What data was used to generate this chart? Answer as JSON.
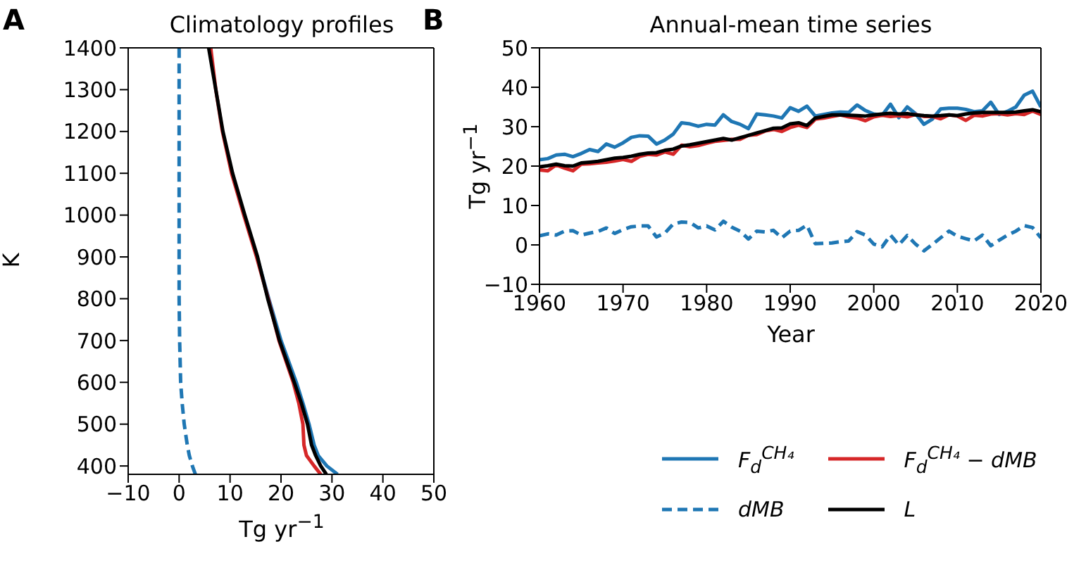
{
  "chart_data": [
    {
      "type": "line",
      "title": "Climatology profiles",
      "xlabel": "Tg yr$^{−1}$",
      "ylabel": "K",
      "annotations": [
        "A"
      ],
      "xlim": [
        -10,
        50
      ],
      "xticks": [
        -10,
        0,
        10,
        20,
        30,
        40,
        50
      ],
      "ylim": [
        380,
        1400
      ],
      "yticks": [
        400,
        500,
        600,
        700,
        800,
        900,
        1000,
        1100,
        1200,
        1300,
        1400
      ],
      "legend": false,
      "series": [
        {
          "color": "#1f77b4",
          "line_style": "solid",
          "x": [
            31.1,
            29,
            27.3,
            26.5,
            25.5,
            24.3,
            23,
            20,
            17.6,
            15.3,
            12.8
          ],
          "values": [
            380,
            400,
            425,
            450,
            500,
            550,
            600,
            700,
            800,
            900,
            1000
          ]
        },
        {
          "color": "#1f77b4",
          "line_style": "dashed",
          "x": [
            3.2,
            2.6,
            2.0,
            1.6,
            1.0,
            0.6,
            0.3,
            0.1,
            0,
            0,
            0,
            0,
            0,
            0,
            0
          ],
          "values": [
            380,
            400,
            425,
            450,
            500,
            550,
            600,
            700,
            800,
            900,
            1000,
            1100,
            1200,
            1300,
            1400
          ]
        },
        {
          "color": "#d62728",
          "line_style": "solid",
          "x": [
            27.8,
            26.5,
            25,
            24.5,
            24.3,
            23.5,
            22.4,
            19.6,
            17.5,
            15.2,
            12.7,
            10.3,
            8.5,
            7.2,
            6.2
          ],
          "values": [
            380,
            400,
            425,
            450,
            500,
            550,
            600,
            700,
            800,
            900,
            1000,
            1100,
            1200,
            1300,
            1400
          ]
        },
        {
          "color": "#000000",
          "line_style": "solid",
          "x": [
            28.9,
            27.8,
            26.8,
            26,
            25.2,
            24,
            22.6,
            19.7,
            17.4,
            15.4,
            12.9,
            10.5,
            8.6,
            7.2,
            5.8
          ],
          "values": [
            380,
            400,
            425,
            450,
            500,
            550,
            600,
            700,
            800,
            900,
            1000,
            1100,
            1200,
            1300,
            1400
          ]
        }
      ]
    },
    {
      "type": "line",
      "title": "Annual-mean time series",
      "xlabel": "Year",
      "ylabel": "Tg yr$^{−1}$",
      "annotations": [
        "B"
      ],
      "xlim": [
        1960,
        2020
      ],
      "xticks": [
        1960,
        1970,
        1980,
        1990,
        2000,
        2010,
        2020
      ],
      "ylim": [
        -10,
        50
      ],
      "yticks": [
        -10,
        0,
        10,
        20,
        30,
        40,
        50
      ],
      "legend": "bottom",
      "x": [
        1960,
        1961,
        1962,
        1963,
        1964,
        1965,
        1966,
        1967,
        1968,
        1969,
        1970,
        1971,
        1972,
        1973,
        1974,
        1975,
        1976,
        1977,
        1978,
        1979,
        1980,
        1981,
        1982,
        1983,
        1984,
        1985,
        1986,
        1987,
        1988,
        1989,
        1990,
        1991,
        1992,
        1993,
        1994,
        1995,
        1996,
        1997,
        1998,
        1999,
        2000,
        2001,
        2002,
        2003,
        2004,
        2005,
        2006,
        2007,
        2008,
        2009,
        2010,
        2011,
        2012,
        2013,
        2014,
        2015,
        2016,
        2017,
        2018,
        2019,
        2020
      ],
      "series": [
        {
          "name": "F$_{d}$$^{CH₄}$",
          "color": "#1f77b4",
          "line_style": "solid",
          "values": [
            21.6,
            21.9,
            22.8,
            23.0,
            22.4,
            23.2,
            24.2,
            23.7,
            25.6,
            24.8,
            25.9,
            27.3,
            27.7,
            27.6,
            25.6,
            26.6,
            28.1,
            31.0,
            30.7,
            30.1,
            30.6,
            30.4,
            33.0,
            31.3,
            30.6,
            29.5,
            33.2,
            33.0,
            32.7,
            32.2,
            34.8,
            33.9,
            35.2,
            32.7,
            33.1,
            33.5,
            33.7,
            33.6,
            35.5,
            34.1,
            33.2,
            32.9,
            35.7,
            32.3,
            35.0,
            33.3,
            30.6,
            31.9,
            34.5,
            34.7,
            34.7,
            34.4,
            33.8,
            34.0,
            36.2,
            33.1,
            33.9,
            35.0,
            38.0,
            39.0,
            35.0
          ]
        },
        {
          "name": "dMB",
          "color": "#1f77b4",
          "line_style": "dashed",
          "values": [
            2.3,
            2.8,
            2.5,
            3.5,
            3.6,
            2.5,
            3.0,
            3.4,
            4.3,
            2.9,
            3.9,
            4.6,
            4.8,
            4.8,
            2.0,
            3.0,
            5.3,
            5.8,
            5.7,
            4.3,
            4.8,
            3.8,
            6.0,
            4.5,
            3.5,
            1.5,
            3.5,
            3.3,
            3.7,
            1.8,
            3.5,
            3.7,
            5.0,
            0.3,
            0.4,
            0.5,
            0.8,
            1.0,
            3.4,
            2.5,
            0.2,
            -0.5,
            2.5,
            0.0,
            2.4,
            0.2,
            -1.5,
            0.1,
            1.8,
            3.5,
            2.2,
            1.6,
            1.0,
            2.5,
            -0.2,
            1.2,
            2.5,
            3.5,
            4.9,
            4.4,
            1.8
          ]
        },
        {
          "name": "F$_{d}$$^{CH₄}$ − dMB",
          "color": "#d62728",
          "line_style": "solid",
          "values": [
            19.0,
            18.8,
            20.3,
            19.5,
            18.8,
            20.5,
            20.6,
            20.8,
            21.0,
            21.3,
            21.7,
            21.2,
            22.5,
            23.0,
            22.8,
            23.6,
            23.0,
            25.3,
            24.9,
            25.2,
            25.8,
            26.3,
            26.5,
            26.8,
            26.8,
            27.8,
            28.0,
            28.9,
            29.3,
            28.8,
            29.8,
            30.4,
            29.8,
            31.9,
            32.2,
            32.6,
            33.0,
            32.5,
            32.2,
            31.5,
            32.5,
            32.9,
            32.6,
            32.8,
            32.5,
            33.1,
            32.6,
            32.6,
            32.0,
            33.0,
            32.7,
            31.6,
            32.9,
            32.7,
            33.2,
            33.3,
            33.0,
            33.3,
            33.1,
            34.0,
            33.1
          ]
        },
        {
          "name": "L",
          "color": "#000000",
          "line_style": "solid",
          "values": [
            19.8,
            20.1,
            20.5,
            20.1,
            20.0,
            20.8,
            21.0,
            21.2,
            21.6,
            22.0,
            22.2,
            22.5,
            23.0,
            23.3,
            23.4,
            24.0,
            24.3,
            25.1,
            25.4,
            25.8,
            26.2,
            26.6,
            27.0,
            26.6,
            27.2,
            27.8,
            28.4,
            29.0,
            29.6,
            29.7,
            30.7,
            31.0,
            30.3,
            32.2,
            32.6,
            33.0,
            33.0,
            32.9,
            32.8,
            32.7,
            33.0,
            33.2,
            33.4,
            33.2,
            33.3,
            33.0,
            32.8,
            32.7,
            32.8,
            33.0,
            32.8,
            33.2,
            33.5,
            33.6,
            33.6,
            33.6,
            33.6,
            33.7,
            34.0,
            34.3,
            33.8
          ]
        }
      ]
    }
  ]
}
